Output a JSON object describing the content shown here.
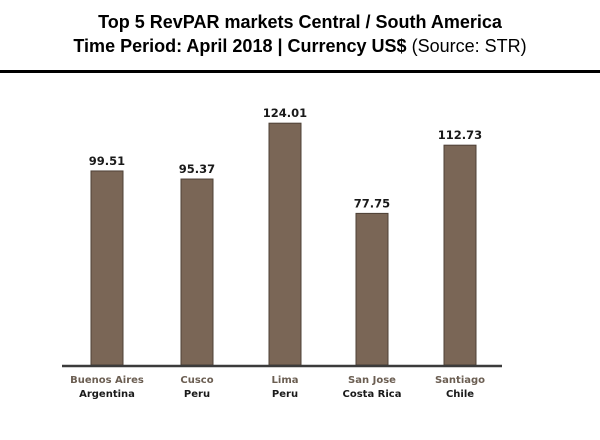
{
  "header": {
    "title_line1": "Top 5 RevPAR markets Central / South America",
    "title_line2": "Time Period: April 2018 | Currency US$",
    "source": "(Source: STR)"
  },
  "chart_data": {
    "type": "bar",
    "categories": [
      {
        "city": "Buenos Aires",
        "country": "Argentina"
      },
      {
        "city": "Cusco",
        "country": "Peru"
      },
      {
        "city": "Lima",
        "country": "Peru"
      },
      {
        "city": "San Jose",
        "country": "Costa Rica"
      },
      {
        "city": "Santiago",
        "country": "Chile"
      }
    ],
    "values": [
      99.51,
      95.37,
      124.01,
      77.75,
      112.73
    ],
    "value_labels": [
      "99.51",
      "95.37",
      "124.01",
      "77.75",
      "112.73"
    ],
    "ylim": [
      0,
      130
    ],
    "grid": false,
    "colors": {
      "bar": "#7a6656",
      "bar_edge": "#4e4036",
      "axis": "#3b3b3b",
      "city_label": "#6b5e52"
    }
  }
}
